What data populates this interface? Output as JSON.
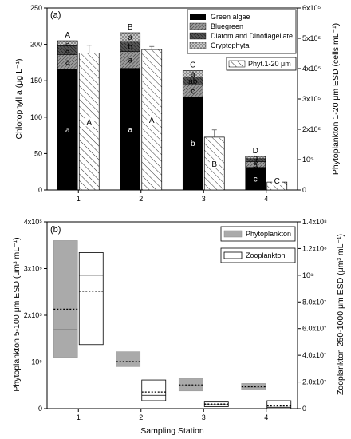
{
  "chart_data": [
    {
      "type": "bar",
      "panel_label": "(a)",
      "categories": [
        "1",
        "2",
        "3",
        "4"
      ],
      "ylabel_left": "Chlorophyll a (μg L⁻¹)",
      "ylabel_right": "Phytoplankton 1-20 μm ESD (cells mL⁻¹)",
      "ylim_left": [
        0,
        250
      ],
      "ylim_right": [
        0,
        600000
      ],
      "yticks_left": [
        "0",
        "50",
        "100",
        "150",
        "200",
        "250"
      ],
      "yticks_right": [
        "0",
        "10⁵",
        "2x10⁵",
        "3x10⁵",
        "4x10⁵",
        "5x10⁵",
        "6x10⁵"
      ],
      "stack_series": [
        {
          "name": "Green algae",
          "color": "#000000",
          "pattern": "solid",
          "values": [
            166,
            167,
            128,
            31
          ],
          "labels": [
            "a",
            "a",
            "b",
            "c"
          ]
        },
        {
          "name": "Bluegreen",
          "color": "#9a9a9a",
          "pattern": "dense-hatch",
          "values": [
            20,
            23,
            16,
            8
          ],
          "labels": [
            "a",
            "a",
            "c",
            "a"
          ]
        },
        {
          "name": "Diatom and Dinoflagellate",
          "color": "#555555",
          "pattern": "dark-hatch",
          "values": [
            12,
            14,
            11,
            4
          ],
          "labels": [
            "a",
            "b",
            "ab",
            "a"
          ]
        },
        {
          "name": "Cryptophyta",
          "color": "#cccccc",
          "pattern": "crosshatch",
          "values": [
            7,
            12,
            9,
            3
          ],
          "labels": [
            "a",
            "a",
            "a",
            "b"
          ]
        }
      ],
      "stack_top_labels": [
        "A",
        "B",
        "C",
        "D"
      ],
      "right_series": {
        "name": "Phyt.1-20 μm",
        "pattern": "diagonal-hatch",
        "values": [
          451000,
          463000,
          174000,
          26000
        ],
        "errors": [
          26000,
          10000,
          24000,
          3000
        ],
        "labels": [
          "A",
          "A",
          "B",
          "C"
        ]
      }
    },
    {
      "type": "box",
      "panel_label": "(b)",
      "categories": [
        "1",
        "2",
        "3",
        "4"
      ],
      "xlabel": "Sampling Station",
      "ylabel_left": "Phytoplankton 5-100 μm ESD (μm³ mL⁻¹)",
      "ylabel_right": "Zooplankton 250-1000 μm ESD (μm³ mL⁻¹)",
      "ylim_left": [
        0,
        400000
      ],
      "ylim_right": [
        0,
        140000000
      ],
      "yticks_left": [
        "0",
        "10⁵",
        "2x10⁵",
        "3x10⁵",
        "4x10⁵"
      ],
      "yticks_right": [
        "0",
        "2.0x10⁷",
        "4.0x10⁷",
        "6.0x10⁷",
        "8.0x10⁷",
        "10⁸",
        "1.2x10⁸",
        "1.4x10⁸"
      ],
      "series": [
        {
          "name": "Phytoplankton",
          "color": "#aaaaaa",
          "boxes": [
            {
              "q1": 110000,
              "median": 170000,
              "mean": 213000,
              "q3": 360000
            },
            {
              "q1": 90000,
              "median": 100000,
              "mean": 101000,
              "q3": 122000
            },
            {
              "q1": 38000,
              "median": 50000,
              "mean": 51000,
              "q3": 65000
            },
            {
              "q1": 40000,
              "median": 46000,
              "mean": 47000,
              "q3": 54000
            }
          ]
        },
        {
          "name": "Zooplankton",
          "color": "#ffffff",
          "boxes": [
            {
              "q1": 48000000,
              "median": 100000000,
              "mean": 88000000,
              "q3": 117000000
            },
            {
              "q1": 6000000,
              "median": 10000000,
              "mean": 12500000,
              "q3": 21500000
            },
            {
              "q1": 1500000,
              "median": 3000000,
              "mean": 3500000,
              "q3": 5000000
            },
            {
              "q1": 0,
              "median": 1000000,
              "mean": 2000000,
              "q3": 6000000
            }
          ]
        }
      ]
    }
  ]
}
